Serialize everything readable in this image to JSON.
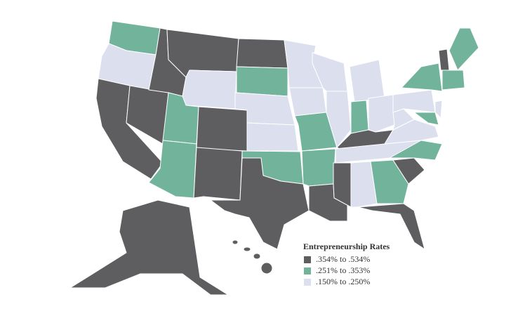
{
  "legend": {
    "title": "Entrepreneurship Rates",
    "items": [
      {
        "label": ".354% to .534%",
        "color": "#5e5e61"
      },
      {
        "label": ".251% to .353%",
        "color": "#72b39b"
      },
      {
        "label": ".150% to .250%",
        "color": "#dcdfee"
      }
    ]
  }
}
